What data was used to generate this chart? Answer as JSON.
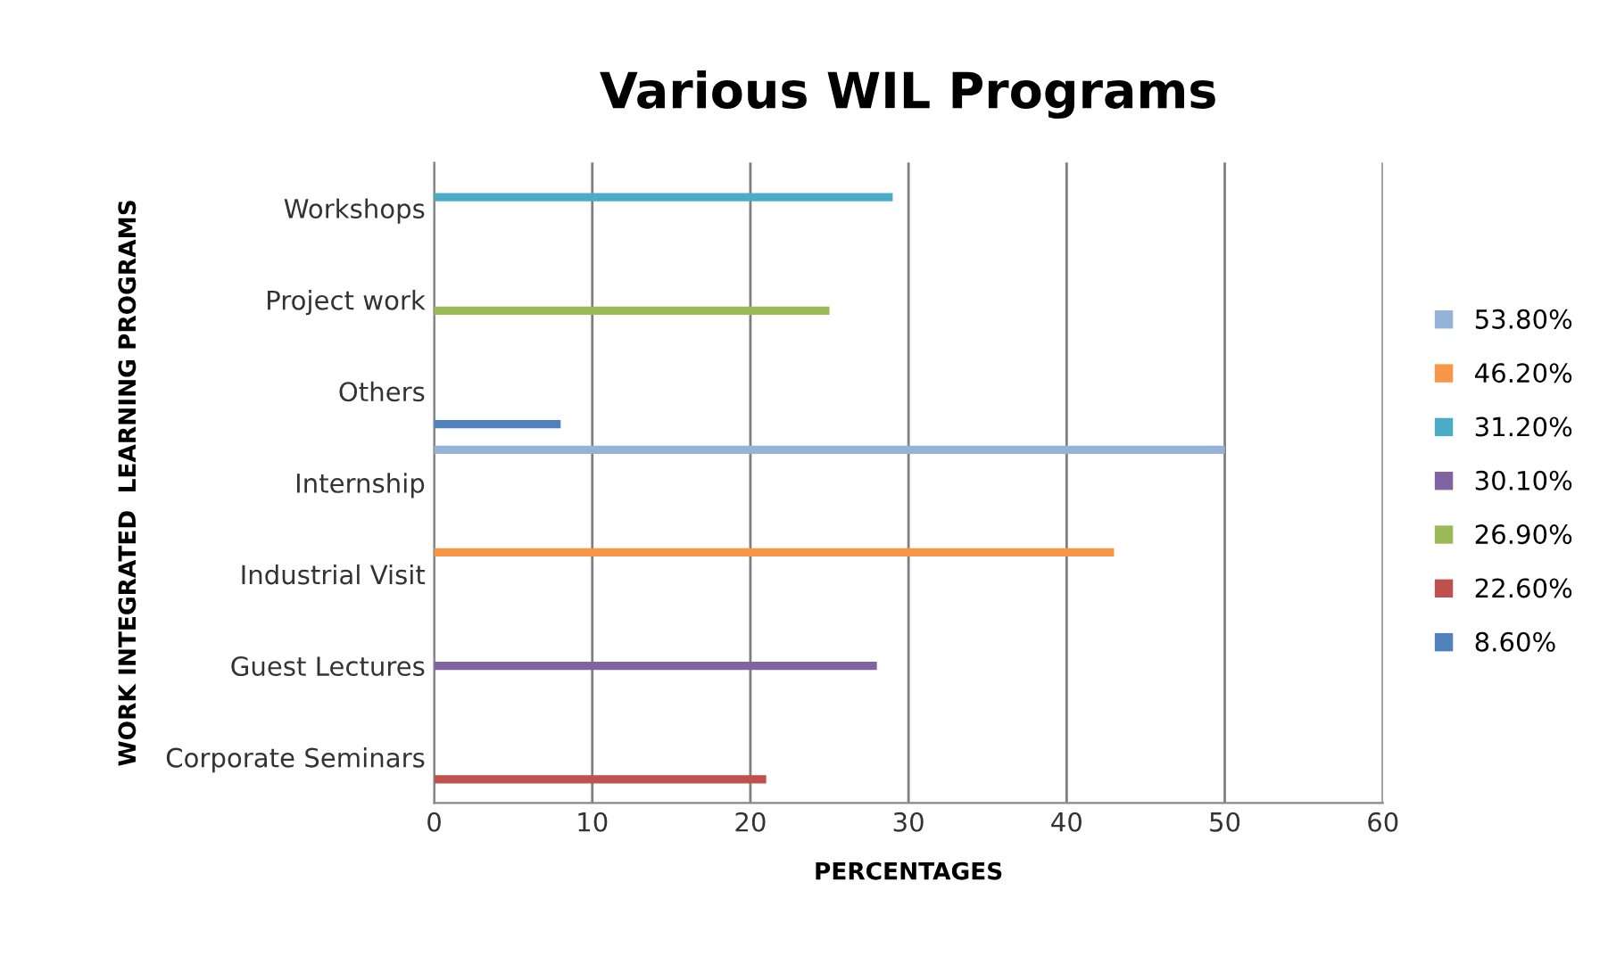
{
  "chart_data": {
    "type": "bar",
    "orientation": "horizontal",
    "title": "Various WIL Programs",
    "xlabel": "PERCENTAGES",
    "ylabel": "WORK INTEGRATED  LEARNING PROGRAMS",
    "categories": [
      "Workshops",
      "Project work",
      "Others",
      "Internship",
      "Industrial Visit",
      "Guest Lectures",
      "Corporate Seminars"
    ],
    "series": [
      {
        "name": "53.80%",
        "color": "#95b3d7",
        "values": [
          null,
          null,
          null,
          50,
          null,
          null,
          null
        ]
      },
      {
        "name": "46.20%",
        "color": "#f79646",
        "values": [
          null,
          null,
          null,
          null,
          43,
          null,
          null
        ]
      },
      {
        "name": "31.20%",
        "color": "#4bacc6",
        "values": [
          29,
          null,
          null,
          null,
          null,
          null,
          null
        ]
      },
      {
        "name": "30.10%",
        "color": "#8064a2",
        "values": [
          null,
          null,
          null,
          null,
          null,
          28,
          null
        ]
      },
      {
        "name": "26.90%",
        "color": "#9bbb59",
        "values": [
          null,
          25,
          null,
          null,
          null,
          null,
          null
        ]
      },
      {
        "name": "22.60%",
        "color": "#c0504d",
        "values": [
          null,
          null,
          null,
          null,
          null,
          null,
          21
        ]
      },
      {
        "name": "8.60%",
        "color": "#4f81bd",
        "values": [
          null,
          null,
          8,
          null,
          null,
          null,
          null
        ]
      }
    ],
    "xlim": [
      0,
      60
    ],
    "xticks": [
      0,
      10,
      20,
      30,
      40,
      50,
      60
    ],
    "grid": "x",
    "legend": "right"
  }
}
